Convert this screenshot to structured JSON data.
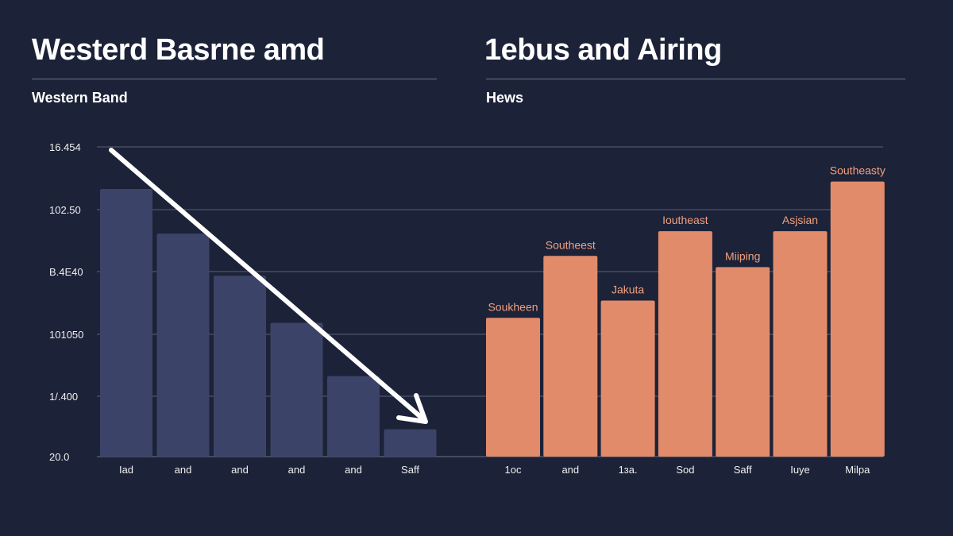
{
  "header": {
    "left_title": "Westerd Basrne amd",
    "left_subtitle": "Western Band",
    "right_title": "1ebus and Airing",
    "right_subtitle": "Hews"
  },
  "chart_data": [
    {
      "type": "bar",
      "title": "Westerd Basrne amd",
      "subtitle": "Western Band",
      "categories": [
        "Iad",
        "and",
        "and",
        "and",
        "and",
        "Saff"
      ],
      "values": [
        216,
        180,
        146,
        108,
        65,
        22
      ],
      "y_tick_labels": [
        "20.0",
        "1/.400",
        "101050",
        "B.4E40",
        "102.50",
        "16.454"
      ],
      "ylim": [
        0,
        250
      ],
      "grid": true,
      "bar_color": "#3b4468",
      "annotation": "downward trend arrow"
    },
    {
      "type": "bar",
      "title": "1ebus and Airing",
      "subtitle": "Hews",
      "categories": [
        "1oc",
        "and",
        "1ɜa.",
        "Sod",
        "Saff",
        "Iuye",
        "Milpa"
      ],
      "values": [
        112,
        162,
        126,
        182,
        153,
        182,
        222
      ],
      "data_labels": [
        "Soukheen",
        "Southeest",
        "Jakuta",
        "Ioutheast",
        "Miiping",
        "Asjsian",
        "Southeasty"
      ],
      "ylim": [
        0,
        250
      ],
      "grid": true,
      "bar_color": "#e28b6b",
      "label_color": "#f2a07f"
    }
  ]
}
